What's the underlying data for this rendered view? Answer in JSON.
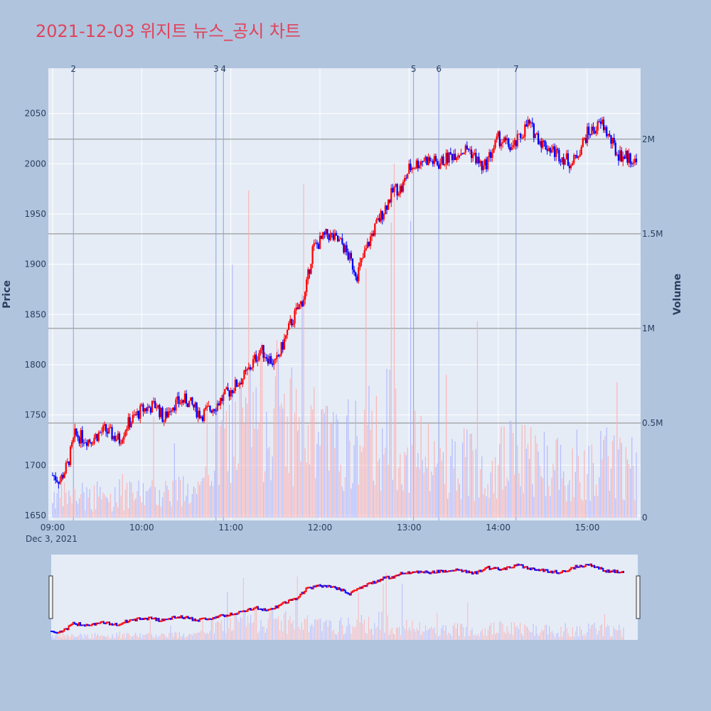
{
  "title": "2021-12-03 위지트 뉴스_공시 차트",
  "chart_data": {
    "type": "candlestick",
    "title": "2021-12-03 위지트 뉴스_공시 차트",
    "ylabel": "Price",
    "y2label": "Volume",
    "date_label": "Dec 3, 2021",
    "price_range": [
      1645,
      2095
    ],
    "price_ticks": [
      1650,
      1700,
      1750,
      1800,
      1850,
      1900,
      1950,
      2000,
      2050
    ],
    "volume_range": [
      0,
      2375000
    ],
    "volume_ticks": [
      {
        "v": 0,
        "label": "0"
      },
      {
        "v": 500000,
        "label": "0.5M"
      },
      {
        "v": 1000000,
        "label": "1M"
      },
      {
        "v": 1500000,
        "label": "1.5M"
      },
      {
        "v": 2000000,
        "label": "2M"
      }
    ],
    "x_ticks": [
      "09:00",
      "10:00",
      "11:00",
      "12:00",
      "13:00",
      "14:00",
      "15:00"
    ],
    "x_range_minutes": [
      0,
      393
    ],
    "up_color": "#ff0000",
    "down_color": "#0000ff",
    "news_markers": [
      {
        "label": "2",
        "minute": 14
      },
      {
        "label": "3",
        "minute": 110
      },
      {
        "label": "4",
        "minute": 115
      },
      {
        "label": "5",
        "minute": 243
      },
      {
        "label": "6",
        "minute": 260
      },
      {
        "label": "7",
        "minute": 312
      }
    ],
    "price_keypoints": [
      [
        0,
        1690
      ],
      [
        5,
        1685
      ],
      [
        10,
        1700
      ],
      [
        15,
        1730
      ],
      [
        25,
        1725
      ],
      [
        35,
        1735
      ],
      [
        45,
        1725
      ],
      [
        50,
        1740
      ],
      [
        60,
        1755
      ],
      [
        70,
        1760
      ],
      [
        75,
        1745
      ],
      [
        80,
        1760
      ],
      [
        90,
        1765
      ],
      [
        100,
        1750
      ],
      [
        110,
        1760
      ],
      [
        120,
        1775
      ],
      [
        130,
        1790
      ],
      [
        140,
        1815
      ],
      [
        150,
        1800
      ],
      [
        160,
        1840
      ],
      [
        170,
        1870
      ],
      [
        175,
        1915
      ],
      [
        185,
        1930
      ],
      [
        195,
        1920
      ],
      [
        200,
        1905
      ],
      [
        205,
        1890
      ],
      [
        215,
        1930
      ],
      [
        225,
        1960
      ],
      [
        230,
        1975
      ],
      [
        235,
        1975
      ],
      [
        240,
        1995
      ],
      [
        250,
        2005
      ],
      [
        260,
        2000
      ],
      [
        270,
        2010
      ],
      [
        280,
        2015
      ],
      [
        290,
        1995
      ],
      [
        300,
        2025
      ],
      [
        310,
        2015
      ],
      [
        320,
        2040
      ],
      [
        330,
        2020
      ],
      [
        340,
        2010
      ],
      [
        350,
        2000
      ],
      [
        360,
        2030
      ],
      [
        370,
        2040
      ],
      [
        380,
        2010
      ],
      [
        390,
        2005
      ],
      [
        393,
        2000
      ]
    ],
    "volume_keypoints": [
      [
        0,
        120000
      ],
      [
        40,
        100000
      ],
      [
        80,
        150000
      ],
      [
        100,
        120000
      ],
      [
        110,
        350000
      ],
      [
        130,
        500000
      ],
      [
        150,
        600000
      ],
      [
        170,
        450000
      ],
      [
        190,
        350000
      ],
      [
        210,
        400000
      ],
      [
        230,
        500000
      ],
      [
        250,
        300000
      ],
      [
        270,
        280000
      ],
      [
        290,
        300000
      ],
      [
        310,
        320000
      ],
      [
        330,
        300000
      ],
      [
        350,
        280000
      ],
      [
        370,
        300000
      ],
      [
        393,
        250000
      ]
    ]
  }
}
